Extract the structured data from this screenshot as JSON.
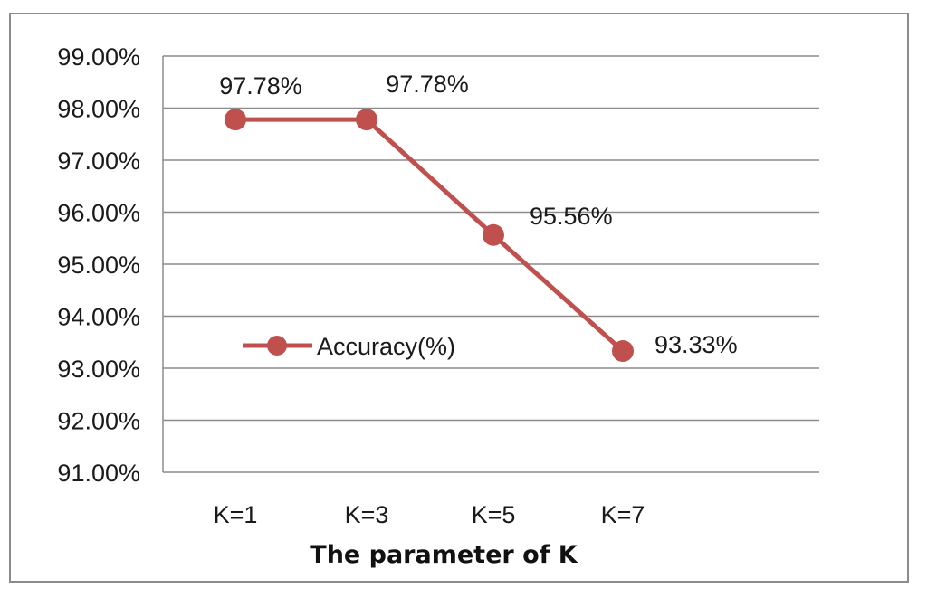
{
  "chart_data": {
    "type": "line",
    "title": "",
    "xlabel": "The parameter of K",
    "ylabel": "",
    "categories": [
      "K=1",
      "K=3",
      "K=5",
      "K=7"
    ],
    "series": [
      {
        "name": "Accuracy(%)",
        "values": [
          97.78,
          97.78,
          95.56,
          93.33
        ],
        "data_labels": [
          "97.78%",
          "97.78%",
          "95.56%",
          "93.33%"
        ],
        "color": "#c0504d"
      }
    ],
    "y_ticks": [
      "91.00%",
      "92.00%",
      "93.00%",
      "94.00%",
      "95.00%",
      "96.00%",
      "97.00%",
      "98.00%",
      "99.00%"
    ],
    "ylim": [
      91,
      99
    ],
    "grid": true,
    "legend_position": "inside-left"
  }
}
